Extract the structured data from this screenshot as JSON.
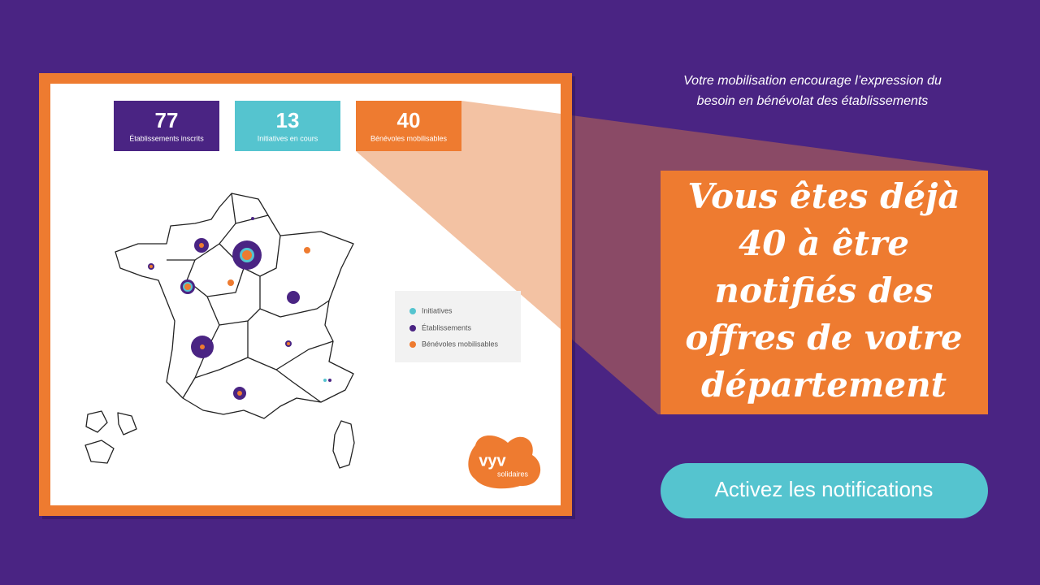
{
  "panel": {
    "stats": [
      {
        "value": 77,
        "label": "Établissements inscrits"
      },
      {
        "value": 13,
        "label": "Initiatives en cours"
      },
      {
        "value": 40,
        "label": "Bénévoles mobilisables"
      }
    ],
    "legend": [
      "Initiatives",
      "Établissements",
      "Bénévoles mobilisables"
    ],
    "logo": {
      "name": "vyv",
      "tagline": "solidaires"
    }
  },
  "caption": [
    "Votre mobilisation encourage l’expression du",
    "besoin en bénévolat des établissements"
  ],
  "headline": [
    "Vous êtes déjà",
    "40 à être",
    "notifiés des",
    "offres de votre",
    "département"
  ],
  "button": "Activez les notifications"
}
